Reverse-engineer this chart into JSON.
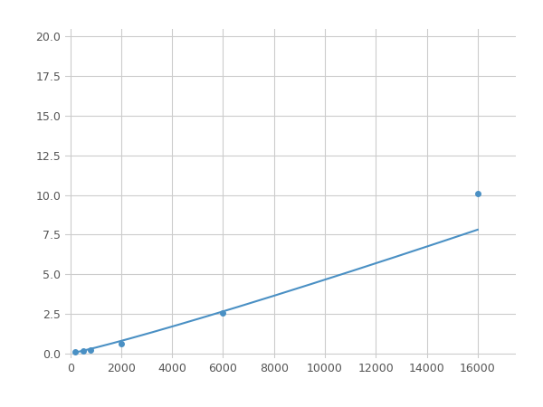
{
  "x": [
    200,
    500,
    800,
    2000,
    6000,
    16000
  ],
  "y": [
    0.09,
    0.16,
    0.22,
    0.62,
    2.55,
    10.1
  ],
  "line_color": "#4a90c4",
  "marker_color": "#4a90c4",
  "marker_size": 4,
  "linewidth": 1.5,
  "xlim": [
    -200,
    17500
  ],
  "ylim": [
    -0.3,
    20.5
  ],
  "xticks": [
    0,
    2000,
    4000,
    6000,
    8000,
    10000,
    12000,
    14000,
    16000
  ],
  "yticks": [
    0.0,
    2.5,
    5.0,
    7.5,
    10.0,
    12.5,
    15.0,
    17.5,
    20.0
  ],
  "grid_color": "#cccccc",
  "background_color": "#ffffff",
  "figsize": [
    6.0,
    4.5
  ],
  "dpi": 100
}
